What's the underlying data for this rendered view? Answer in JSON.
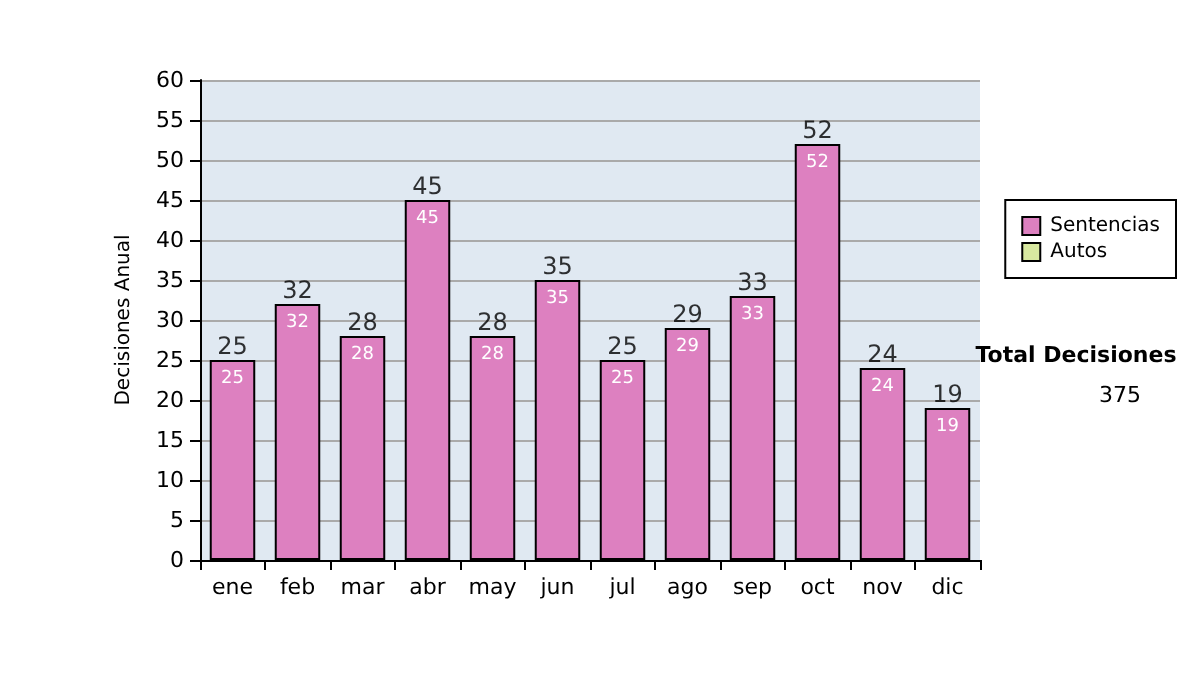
{
  "chart_data": {
    "type": "bar",
    "ylabel": "Decisiones Anual",
    "categories": [
      "ene",
      "feb",
      "mar",
      "abr",
      "may",
      "jun",
      "jul",
      "ago",
      "sep",
      "oct",
      "nov",
      "dic"
    ],
    "series": [
      {
        "name": "Sentencias",
        "color": "#dd80c0",
        "values": [
          25,
          32,
          28,
          45,
          28,
          35,
          25,
          29,
          33,
          52,
          24,
          19
        ]
      },
      {
        "name": "Autos",
        "color": "#d8e8a0",
        "values": [
          null,
          null,
          null,
          null,
          null,
          null,
          null,
          null,
          null,
          null,
          null,
          null
        ]
      }
    ],
    "stacked": true,
    "data_labels": true,
    "totals": [
      "25",
      "32",
      "28",
      "45",
      "28",
      "35",
      "25",
      "29",
      "33",
      "52",
      "24",
      "19"
    ],
    "ylim": [
      0,
      60
    ],
    "yticks": [
      0,
      5,
      10,
      15,
      20,
      25,
      30,
      35,
      40,
      45,
      50,
      55,
      60
    ],
    "grid": "y",
    "legend": "right",
    "annotations": [
      "Total Decisiones",
      "375"
    ]
  }
}
